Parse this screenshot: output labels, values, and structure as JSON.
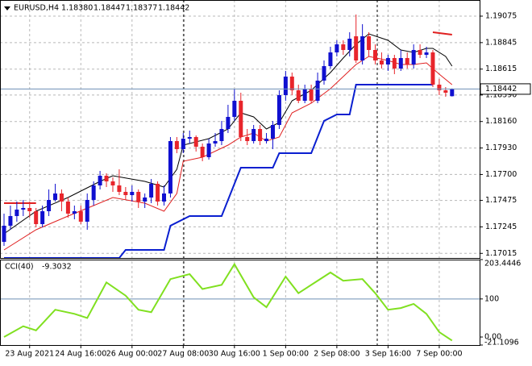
{
  "chart_data": {
    "type": "candlestick",
    "header": {
      "symbol": "EURUSD,H4",
      "ohlc": [
        "1.18380",
        "1.18447",
        "1.18377",
        "1.18442"
      ]
    },
    "bull_color": "#1010d0",
    "bear_color": "#e8252b",
    "ylim": [
      1.16975,
      1.1918
    ],
    "yticks": [
      1.19075,
      1.18845,
      1.18615,
      {
        "value": 1.1839,
        "label": "1.18390"
      },
      {
        "value": 1.1816,
        "label": "1.18160"
      },
      {
        "value": 1.1793,
        "label": "1.17930"
      },
      {
        "value": 1.177,
        "label": "1.17700"
      },
      1.17475,
      1.17245,
      1.17015
    ],
    "grid": true,
    "time_labels": [
      "23 Aug 2021",
      "24 Aug 16:00",
      "26 Aug 00:00",
      "27 Aug 08:00",
      "30 Aug 16:00",
      "1 Sep 00:00",
      "2 Sep 08:00",
      "3 Sep 16:00",
      "7 Sep 00:00"
    ],
    "candles": {
      "open": [
        1.17115,
        1.17255,
        1.17339,
        1.17395,
        1.17409,
        1.17381,
        1.17269,
        1.17381,
        1.17479,
        1.17535,
        1.17465,
        1.1736,
        1.17381,
        1.1729,
        1.17479,
        1.17605,
        1.17689,
        1.1764,
        1.17605,
        1.17549,
        1.17521,
        1.17549,
        1.17465,
        1.175,
        1.17619,
        1.17465,
        1.17535,
        1.1799,
        1.1792,
        1.18011,
        1.18025,
        1.17941,
        1.1785,
        1.17969,
        1.1799,
        1.18095,
        1.182,
        1.1834,
        1.18025,
        1.1799,
        1.18095,
        1.1799,
        1.18011,
        1.1813,
        1.18389,
        1.1855,
        1.18431,
        1.1834,
        1.18445,
        1.1834,
        1.18515,
        1.18641,
        1.1876,
        1.1883,
        1.18781,
        1.189,
        1.1869,
        1.189,
        1.18781,
        1.1869,
        1.18655,
        1.18711,
        1.1862,
        1.18711,
        1.18655,
        1.18781,
        1.18739,
        1.1876,
        1.1848,
        1.18431,
        1.1838
      ],
      "high": [
        1.1736,
        1.1743,
        1.17465,
        1.17479,
        1.17465,
        1.17409,
        1.1743,
        1.1757,
        1.17619,
        1.1757,
        1.175,
        1.1743,
        1.1743,
        1.17535,
        1.1764,
        1.17731,
        1.1771,
        1.17675,
        1.17745,
        1.17591,
        1.17605,
        1.1757,
        1.17535,
        1.17661,
        1.1764,
        1.17605,
        1.18025,
        1.18025,
        1.1806,
        1.18081,
        1.18039,
        1.17969,
        1.18011,
        1.1806,
        1.18165,
        1.18305,
        1.18445,
        1.1841,
        1.18095,
        1.1813,
        1.1813,
        1.1806,
        1.18165,
        1.18431,
        1.18599,
        1.18585,
        1.1848,
        1.1848,
        1.1848,
        1.18585,
        1.1869,
        1.18809,
        1.18865,
        1.18865,
        1.18935,
        1.19089,
        1.19005,
        1.18935,
        1.1883,
        1.1876,
        1.18739,
        1.18739,
        1.18781,
        1.1876,
        1.1883,
        1.1883,
        1.18809,
        1.18781,
        1.18529,
        1.18459,
        1.18447
      ],
      "low": [
        1.1708,
        1.1722,
        1.1729,
        1.17339,
        1.17325,
        1.17241,
        1.17241,
        1.17339,
        1.17465,
        1.17381,
        1.17325,
        1.17311,
        1.17269,
        1.1722,
        1.1743,
        1.1757,
        1.17591,
        1.17549,
        1.17521,
        1.17479,
        1.17465,
        1.17409,
        1.17409,
        1.17451,
        1.1743,
        1.1743,
        1.175,
        1.17885,
        1.17885,
        1.17969,
        1.17899,
        1.17815,
        1.17829,
        1.17941,
        1.17955,
        1.1806,
        1.18165,
        1.1799,
        1.17955,
        1.17969,
        1.17955,
        1.17969,
        1.1792,
        1.18095,
        1.1834,
        1.18389,
        1.18319,
        1.18319,
        1.18319,
        1.18319,
        1.1848,
        1.1862,
        1.18725,
        1.18739,
        1.18725,
        1.18669,
        1.18655,
        1.18725,
        1.18655,
        1.1862,
        1.18599,
        1.18571,
        1.18599,
        1.1862,
        1.1862,
        1.18711,
        1.18711,
        1.18459,
        1.18389,
        1.18375,
        1.18377
      ],
      "close": [
        1.17255,
        1.17339,
        1.17395,
        1.17409,
        1.17381,
        1.17269,
        1.17381,
        1.17479,
        1.17535,
        1.17465,
        1.1736,
        1.17381,
        1.1729,
        1.17479,
        1.17605,
        1.17689,
        1.1764,
        1.17605,
        1.17549,
        1.17521,
        1.17549,
        1.17465,
        1.175,
        1.17619,
        1.17465,
        1.17535,
        1.1799,
        1.1792,
        1.18011,
        1.18025,
        1.17941,
        1.1785,
        1.17969,
        1.1799,
        1.18095,
        1.182,
        1.1834,
        1.18025,
        1.1799,
        1.18095,
        1.1799,
        1.18011,
        1.1813,
        1.18389,
        1.1855,
        1.18431,
        1.1834,
        1.18445,
        1.1834,
        1.18515,
        1.18641,
        1.1876,
        1.1883,
        1.18781,
        1.18879,
        1.1869,
        1.189,
        1.18781,
        1.1869,
        1.18655,
        1.18711,
        1.1862,
        1.18711,
        1.18655,
        1.18781,
        1.18739,
        1.1876,
        1.1848,
        1.18431,
        1.1841,
        1.18442
      ]
    },
    "lines": [
      {
        "color": "#000000",
        "width": 1,
        "x": [
          0,
          5,
          10,
          15,
          17,
          22,
          25,
          27,
          28,
          32,
          35,
          37,
          39,
          41,
          43,
          45,
          48,
          51,
          53,
          55,
          57,
          60,
          62,
          64,
          66,
          67,
          69,
          70
        ],
        "values": [
          1.17185,
          1.17381,
          1.175,
          1.1764,
          1.17689,
          1.1764,
          1.17591,
          1.17745,
          1.17955,
          1.18011,
          1.18095,
          1.18235,
          1.182,
          1.18095,
          1.18151,
          1.1834,
          1.18431,
          1.18585,
          1.18711,
          1.1883,
          1.18921,
          1.18865,
          1.18781,
          1.1876,
          1.18795,
          1.18795,
          1.18725,
          1.18641
        ]
      },
      {
        "color": "#e02020",
        "width": 1,
        "x": [
          0,
          5,
          10,
          14,
          17,
          22,
          25,
          27,
          28,
          31,
          35,
          37,
          39,
          41,
          43,
          45,
          48,
          51,
          53,
          55,
          57,
          60,
          62,
          64,
          66,
          68,
          70
        ],
        "values": [
          1.17045,
          1.1722,
          1.17339,
          1.1743,
          1.175,
          1.17451,
          1.17381,
          1.17535,
          1.17815,
          1.1785,
          1.17955,
          1.18025,
          1.1806,
          1.1799,
          1.18025,
          1.18235,
          1.18319,
          1.18445,
          1.1855,
          1.18655,
          1.18725,
          1.1869,
          1.18655,
          1.18655,
          1.18669,
          1.18571,
          1.1848
        ]
      },
      {
        "color": "#0a1fd0",
        "width": 2,
        "x": [
          0,
          18,
          19,
          25,
          26,
          29,
          34,
          37,
          42,
          43,
          48,
          50,
          52,
          54,
          55,
          67
        ],
        "values": [
          1.16975,
          1.16975,
          1.17045,
          1.17045,
          1.17255,
          1.17339,
          1.17339,
          1.17759,
          1.17759,
          1.17885,
          1.17885,
          1.18165,
          1.18221,
          1.18221,
          1.1848,
          1.1848
        ]
      },
      {
        "color": "#e02020",
        "width": 2,
        "x": [
          0,
          5,
          6,
          67,
          70
        ],
        "values": [
          1.17451,
          1.17451,
          null,
          1.18935,
          1.18914
        ]
      }
    ],
    "cci": {
      "name": "CCI(40)",
      "color": "#80e020",
      "x": [
        0,
        3,
        5,
        8,
        11,
        13,
        16,
        19,
        21,
        23,
        26,
        29,
        31,
        34,
        36,
        39,
        41,
        44,
        46,
        49,
        51,
        53,
        56,
        58,
        60,
        62,
        64,
        66,
        68,
        70
      ],
      "values": [
        0,
        28.3,
        17.4,
        71.7,
        60.9,
        50,
        143.5,
        108.7,
        71.7,
        65.2,
        152.2,
        165.2,
        126.1,
        137,
        191.3,
        104.3,
        78.3,
        158.7,
        115.2,
        147.8,
        169.6,
        147.8,
        152.2,
        115.2,
        71.7,
        76.1,
        87,
        60.9,
        13,
        -9.3032
      ],
      "y2lim": [
        -21.1096,
        203.4446
      ],
      "y2ticks": [
        203.4446,
        100,
        {
          "value": 0,
          "label": "0.00"
        },
        -21.1096
      ],
      "level": 100
    }
  }
}
